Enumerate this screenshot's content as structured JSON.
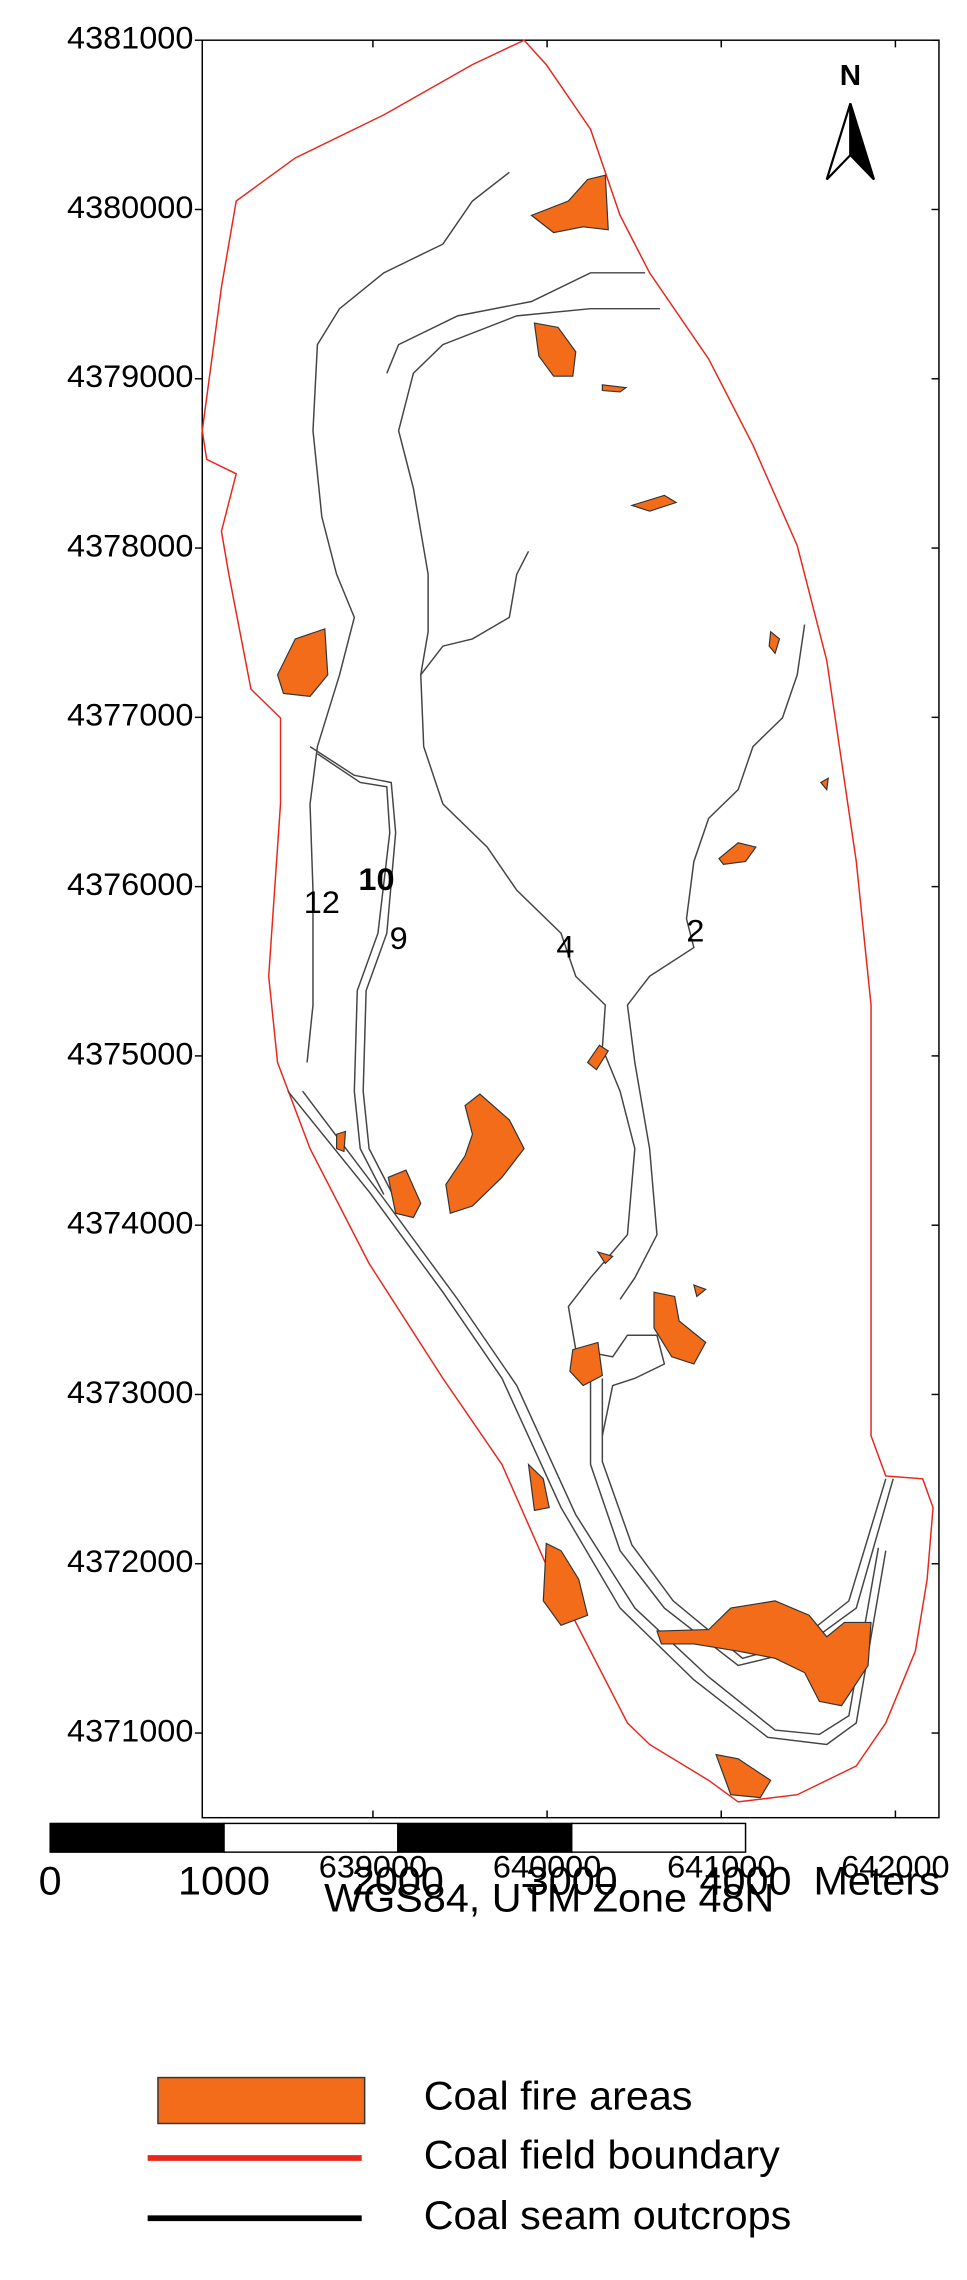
{
  "map": {
    "north_label": "N",
    "xlim": [
      638020,
      642250
    ],
    "ylim": [
      4370500,
      4381000
    ],
    "xticks": [
      639000,
      640000,
      641000,
      642000
    ],
    "yticks": [
      4371000,
      4372000,
      4373000,
      4374000,
      4375000,
      4376000,
      4377000,
      4378000,
      4379000,
      4380000,
      4381000
    ],
    "seam_labels": [
      "12",
      "10",
      "9",
      "4",
      "2"
    ],
    "projection": "WGS84, UTM Zone 48N",
    "scale_bar": {
      "values": [
        0,
        1000,
        2000,
        3000,
        4000
      ],
      "unit": "Meters"
    },
    "legend": [
      "Coal fire areas",
      "Coal field boundary",
      "Coal seam outcrops"
    ]
  }
}
